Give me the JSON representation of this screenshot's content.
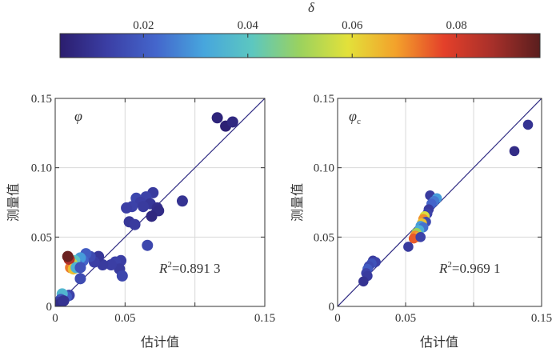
{
  "colorbar": {
    "label": "δ",
    "ticks": [
      0.02,
      0.04,
      0.06,
      0.08
    ],
    "tick_labels": [
      "0.02",
      "0.04",
      "0.06",
      "0.08"
    ],
    "range": [
      0.004,
      0.096
    ],
    "colors": [
      "#2b1d6e",
      "#3b3fa5",
      "#4466cc",
      "#47a6dd",
      "#5cc7c0",
      "#9bd25e",
      "#e3e13a",
      "#f3a12b",
      "#e4402a",
      "#a8302a",
      "#5a1e1e"
    ]
  },
  "chart_data": [
    {
      "type": "scatter",
      "name": "phi",
      "panel_symbol": "φ",
      "xlabel": "估计值",
      "ylabel": "测量值",
      "xlim": [
        0,
        0.15
      ],
      "ylim": [
        0,
        0.15
      ],
      "xticks": [
        0,
        0.05,
        0.1,
        0.15
      ],
      "yticks": [
        0,
        0.05,
        0.1,
        0.15
      ],
      "xtick_labels": [
        "0",
        "0.05",
        "0.15"
      ],
      "xtick_label_values": [
        0,
        0.05,
        0.15
      ],
      "ytick_labels": [
        "0",
        "0.05",
        "0.10",
        "0.15"
      ],
      "grid": true,
      "reference_line": "y = x",
      "annotation": {
        "r_symbol": "R",
        "r_sup": "2",
        "r_value": "=0.891 3"
      },
      "points": [
        {
          "x": 0.116,
          "y": 0.136,
          "d": 0.006
        },
        {
          "x": 0.122,
          "y": 0.13,
          "d": 0.005
        },
        {
          "x": 0.127,
          "y": 0.133,
          "d": 0.007
        },
        {
          "x": 0.091,
          "y": 0.076,
          "d": 0.01
        },
        {
          "x": 0.07,
          "y": 0.082,
          "d": 0.012
        },
        {
          "x": 0.065,
          "y": 0.079,
          "d": 0.014
        },
        {
          "x": 0.058,
          "y": 0.078,
          "d": 0.015
        },
        {
          "x": 0.061,
          "y": 0.075,
          "d": 0.013
        },
        {
          "x": 0.068,
          "y": 0.074,
          "d": 0.011
        },
        {
          "x": 0.073,
          "y": 0.071,
          "d": 0.009
        },
        {
          "x": 0.074,
          "y": 0.069,
          "d": 0.008
        },
        {
          "x": 0.069,
          "y": 0.065,
          "d": 0.007
        },
        {
          "x": 0.063,
          "y": 0.072,
          "d": 0.012
        },
        {
          "x": 0.055,
          "y": 0.072,
          "d": 0.014
        },
        {
          "x": 0.051,
          "y": 0.071,
          "d": 0.013
        },
        {
          "x": 0.053,
          "y": 0.061,
          "d": 0.011
        },
        {
          "x": 0.057,
          "y": 0.059,
          "d": 0.012
        },
        {
          "x": 0.066,
          "y": 0.044,
          "d": 0.015
        },
        {
          "x": 0.047,
          "y": 0.033,
          "d": 0.013
        },
        {
          "x": 0.043,
          "y": 0.032,
          "d": 0.014
        },
        {
          "x": 0.046,
          "y": 0.027,
          "d": 0.012
        },
        {
          "x": 0.048,
          "y": 0.022,
          "d": 0.015
        },
        {
          "x": 0.04,
          "y": 0.03,
          "d": 0.013
        },
        {
          "x": 0.034,
          "y": 0.03,
          "d": 0.012
        },
        {
          "x": 0.031,
          "y": 0.036,
          "d": 0.011
        },
        {
          "x": 0.028,
          "y": 0.032,
          "d": 0.013
        },
        {
          "x": 0.025,
          "y": 0.036,
          "d": 0.016
        },
        {
          "x": 0.022,
          "y": 0.038,
          "d": 0.02
        },
        {
          "x": 0.02,
          "y": 0.033,
          "d": 0.022
        },
        {
          "x": 0.018,
          "y": 0.035,
          "d": 0.03
        },
        {
          "x": 0.016,
          "y": 0.03,
          "d": 0.026
        },
        {
          "x": 0.014,
          "y": 0.033,
          "d": 0.04
        },
        {
          "x": 0.012,
          "y": 0.031,
          "d": 0.055
        },
        {
          "x": 0.011,
          "y": 0.028,
          "d": 0.072
        },
        {
          "x": 0.01,
          "y": 0.034,
          "d": 0.085
        },
        {
          "x": 0.009,
          "y": 0.036,
          "d": 0.094
        },
        {
          "x": 0.013,
          "y": 0.027,
          "d": 0.064
        },
        {
          "x": 0.015,
          "y": 0.028,
          "d": 0.035
        },
        {
          "x": 0.018,
          "y": 0.028,
          "d": 0.018
        },
        {
          "x": 0.018,
          "y": 0.02,
          "d": 0.016
        },
        {
          "x": 0.01,
          "y": 0.008,
          "d": 0.014
        },
        {
          "x": 0.008,
          "y": 0.007,
          "d": 0.02
        },
        {
          "x": 0.005,
          "y": 0.009,
          "d": 0.036
        },
        {
          "x": 0.004,
          "y": 0.005,
          "d": 0.018
        },
        {
          "x": 0.003,
          "y": 0.003,
          "d": 0.012
        },
        {
          "x": 0.002,
          "y": 0.001,
          "d": 0.008
        },
        {
          "x": 0.006,
          "y": 0.004,
          "d": 0.01
        }
      ]
    },
    {
      "type": "scatter",
      "name": "phi_c",
      "panel_symbol": "φ",
      "panel_subscript": "c",
      "xlabel": "估计值",
      "ylabel": "测量值",
      "xlim": [
        0,
        0.15
      ],
      "ylim": [
        0,
        0.15
      ],
      "xticks": [
        0,
        0.05,
        0.1,
        0.15
      ],
      "yticks": [
        0,
        0.05,
        0.1,
        0.15
      ],
      "xtick_labels": [
        "0",
        "0.05",
        "0.15"
      ],
      "xtick_label_values": [
        0,
        0.05,
        0.15
      ],
      "ytick_labels": [
        "0",
        "0.05",
        "0.10",
        "0.15"
      ],
      "grid": true,
      "reference_line": "y = x",
      "annotation": {
        "r_symbol": "R",
        "r_sup": "2",
        "r_value": "=0.969 1"
      },
      "points": [
        {
          "x": 0.14,
          "y": 0.131,
          "d": 0.01
        },
        {
          "x": 0.13,
          "y": 0.112,
          "d": 0.008
        },
        {
          "x": 0.068,
          "y": 0.08,
          "d": 0.012
        },
        {
          "x": 0.073,
          "y": 0.078,
          "d": 0.03
        },
        {
          "x": 0.071,
          "y": 0.076,
          "d": 0.025
        },
        {
          "x": 0.069,
          "y": 0.074,
          "d": 0.022
        },
        {
          "x": 0.067,
          "y": 0.07,
          "d": 0.012
        },
        {
          "x": 0.066,
          "y": 0.067,
          "d": 0.014
        },
        {
          "x": 0.064,
          "y": 0.065,
          "d": 0.058
        },
        {
          "x": 0.063,
          "y": 0.063,
          "d": 0.07
        },
        {
          "x": 0.065,
          "y": 0.061,
          "d": 0.016
        },
        {
          "x": 0.062,
          "y": 0.06,
          "d": 0.064
        },
        {
          "x": 0.061,
          "y": 0.058,
          "d": 0.03
        },
        {
          "x": 0.063,
          "y": 0.057,
          "d": 0.024
        },
        {
          "x": 0.06,
          "y": 0.055,
          "d": 0.034
        },
        {
          "x": 0.058,
          "y": 0.053,
          "d": 0.05
        },
        {
          "x": 0.057,
          "y": 0.051,
          "d": 0.07
        },
        {
          "x": 0.059,
          "y": 0.05,
          "d": 0.066
        },
        {
          "x": 0.056,
          "y": 0.049,
          "d": 0.075
        },
        {
          "x": 0.061,
          "y": 0.05,
          "d": 0.014
        },
        {
          "x": 0.052,
          "y": 0.043,
          "d": 0.012
        },
        {
          "x": 0.026,
          "y": 0.033,
          "d": 0.012
        },
        {
          "x": 0.028,
          "y": 0.032,
          "d": 0.014
        },
        {
          "x": 0.025,
          "y": 0.031,
          "d": 0.018
        },
        {
          "x": 0.023,
          "y": 0.029,
          "d": 0.016
        },
        {
          "x": 0.022,
          "y": 0.027,
          "d": 0.02
        },
        {
          "x": 0.021,
          "y": 0.024,
          "d": 0.014
        },
        {
          "x": 0.022,
          "y": 0.022,
          "d": 0.012
        },
        {
          "x": 0.019,
          "y": 0.018,
          "d": 0.01
        }
      ]
    }
  ]
}
